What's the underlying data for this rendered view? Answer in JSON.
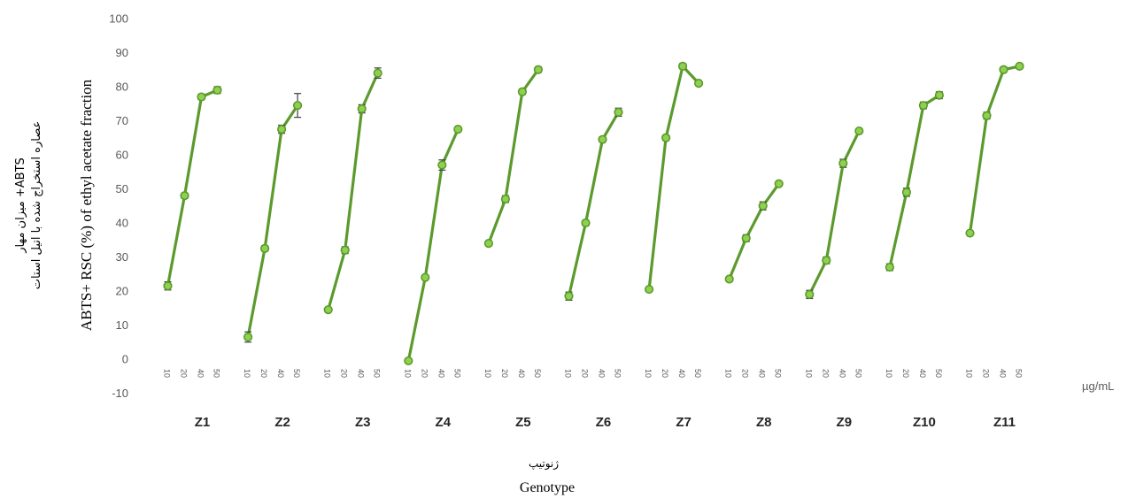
{
  "chart_data": {
    "type": "line",
    "title": "",
    "xlabel": "Genotype",
    "xlabel_fa": "ژنوتیپ",
    "ylabel": "ABTS+ RSC (%) of ethyl acetate fraction",
    "ylabel_fa_1": "میزان مهار +ABTS",
    "ylabel_fa_2": "عصاره استخراج شده با اتیل استات",
    "unit_label": "µg/mL",
    "ylim": [
      -10,
      100
    ],
    "yticks": [
      -10,
      0,
      10,
      20,
      30,
      40,
      50,
      60,
      70,
      80,
      90,
      100
    ],
    "concentrations": [
      "10",
      "20",
      "40",
      "50"
    ],
    "grid": false,
    "legend": "none",
    "colors": {
      "line": "#5b9a2c",
      "marker": "#8fd14f",
      "error_bar": "#404040"
    },
    "series": [
      {
        "name": "Z1",
        "values": [
          21.5,
          48,
          77,
          79
        ],
        "errors": [
          1.2,
          0.8,
          0.8,
          1.0
        ]
      },
      {
        "name": "Z2",
        "values": [
          6.5,
          32.5,
          67.5,
          74.5
        ],
        "errors": [
          1.5,
          0.8,
          1.2,
          3.5
        ]
      },
      {
        "name": "Z3",
        "values": [
          14.5,
          32,
          73.5,
          84
        ],
        "errors": [
          0.6,
          1.0,
          1.2,
          1.5
        ]
      },
      {
        "name": "Z4",
        "values": [
          -0.5,
          24,
          57,
          67.5
        ],
        "errors": [
          0.5,
          0.6,
          1.5,
          0.6
        ]
      },
      {
        "name": "Z5",
        "values": [
          34,
          47,
          78.5,
          85
        ],
        "errors": [
          0.6,
          1.0,
          0.8,
          0.8
        ]
      },
      {
        "name": "Z6",
        "values": [
          18.5,
          40,
          64.5,
          72.5
        ],
        "errors": [
          1.2,
          0.8,
          0.8,
          1.2
        ]
      },
      {
        "name": "Z7",
        "values": [
          20.5,
          65,
          86,
          81
        ],
        "errors": [
          0.5,
          0.8,
          0.8,
          0.6
        ]
      },
      {
        "name": "Z8",
        "values": [
          23.5,
          35.5,
          45,
          51.5
        ],
        "errors": [
          0.6,
          1.0,
          1.2,
          0.6
        ]
      },
      {
        "name": "Z9",
        "values": [
          19,
          29,
          57.5,
          67
        ],
        "errors": [
          1.2,
          1.0,
          1.2,
          0.6
        ]
      },
      {
        "name": "Z10",
        "values": [
          27,
          49,
          74.5,
          77.5
        ],
        "errors": [
          1.0,
          1.2,
          1.0,
          1.0
        ]
      },
      {
        "name": "Z11",
        "values": [
          37,
          71.5,
          85,
          86
        ],
        "errors": [
          0.5,
          1.0,
          0.8,
          0.6
        ]
      }
    ]
  }
}
